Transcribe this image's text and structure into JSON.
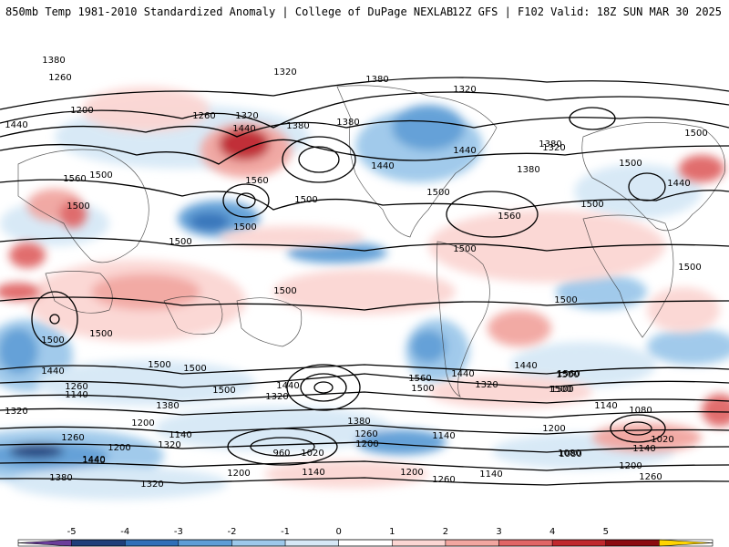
{
  "header": {
    "title": "850mb Temp 1981-2010 Standardized Anomaly | College of DuPage NEXLAB",
    "run_info": "12Z GFS | F102 Valid: 18Z SUN MAR 30 2025"
  },
  "colorbar": {
    "ticks": [
      "-5",
      "-4",
      "-3",
      "-2",
      "-1",
      "0",
      "1",
      "2",
      "3",
      "4",
      "5"
    ],
    "colors": [
      "#6a3d9a",
      "#1f3e7a",
      "#2f6fb8",
      "#5d9dd6",
      "#9cc8ea",
      "#d6e8f6",
      "#ffffff",
      "#fbd6d3",
      "#f2a6a0",
      "#e06666",
      "#c0282d",
      "#8b0b10",
      "#ffd400"
    ]
  },
  "contour_labels": [
    "1260",
    "1320",
    "1200",
    "1260",
    "1320",
    "1440",
    "1380",
    "1380",
    "1380",
    "1320",
    "1440",
    "1500",
    "1560",
    "1500",
    "1560",
    "1500",
    "1500",
    "1500",
    "1440",
    "1440",
    "1380",
    "1500",
    "1500",
    "1560",
    "1500",
    "1440",
    "1500",
    "1380",
    "1320",
    "1500",
    "1500",
    "1500",
    "1500",
    "1500",
    "1500",
    "1500",
    "1500",
    "1500",
    "1500",
    "1500",
    "1560",
    "1440",
    "1500",
    "1320",
    "1440",
    "1560",
    "1500",
    "1440",
    "1440",
    "1260",
    "1140",
    "1380",
    "1200",
    "1380",
    "1320",
    "1320",
    "1260",
    "1200",
    "1140",
    "1080",
    "1200",
    "1140",
    "960",
    "1020",
    "1320",
    "1140",
    "1080",
    "1020",
    "1260",
    "1200",
    "1140",
    "1200",
    "1260",
    "1140",
    "1380",
    "1320",
    "1260",
    "1200",
    "1440",
    "1200",
    "1080",
    "1140",
    "1440",
    "1380"
  ]
}
